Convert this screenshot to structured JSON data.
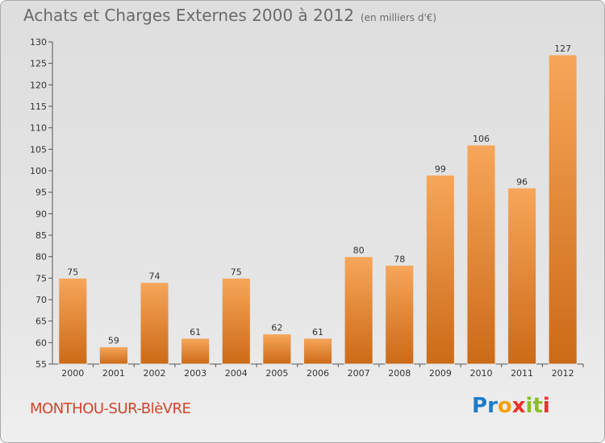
{
  "header": {
    "title": "Achats et Charges Externes 2000 à 2012",
    "unit": "(en milliers d'€)"
  },
  "footer": {
    "commune": "MONTHOU-SUR-BlèVRE",
    "logo_letters": [
      "P",
      "r",
      "o",
      "x",
      "i",
      "t",
      "i"
    ],
    "logo_colors": [
      "#1f7cc7",
      "#1f7cc7",
      "#f2a20d",
      "#e8322b",
      "#8bbd2a",
      "#8bbd2a",
      "#e8322b"
    ]
  },
  "colors": {
    "bar_top": "#f7a65a",
    "bar_bottom": "#cc6a17",
    "commune": "#d2452a"
  },
  "chart_data": {
    "type": "bar",
    "title": "Achats et Charges Externes 2000 à 2012",
    "categories": [
      "2000",
      "2001",
      "2002",
      "2003",
      "2004",
      "2005",
      "2006",
      "2007",
      "2008",
      "2009",
      "2010",
      "2011",
      "2012"
    ],
    "values": [
      75,
      59,
      74,
      61,
      75,
      62,
      61,
      80,
      78,
      99,
      106,
      96,
      127
    ],
    "ylim": [
      55,
      130
    ],
    "yticks": [
      55,
      60,
      65,
      70,
      75,
      80,
      85,
      90,
      95,
      100,
      105,
      110,
      115,
      120,
      125,
      130
    ],
    "grid": false
  }
}
